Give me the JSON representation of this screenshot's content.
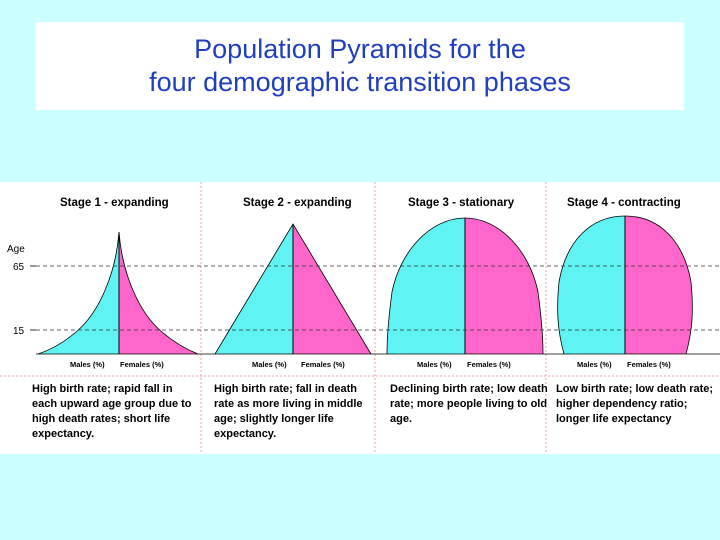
{
  "title": {
    "line1": "Population Pyramids for the",
    "line2": "four demographic transition phases"
  },
  "axis": {
    "age_label": "Age",
    "tick_65": "65",
    "tick_15": "15"
  },
  "colors": {
    "males": "#5ff3f3",
    "females": "#ff66cc",
    "title_text": "#1f3fbf",
    "background": "#ccffff"
  },
  "stages": [
    {
      "title": "Stage 1 - expanding",
      "males_label": "Males (%)",
      "females_label": "Females (%)",
      "description": "High birth rate; rapid fall in each upward age group due to high death rates; short life expectancy."
    },
    {
      "title": "Stage 2 - expanding",
      "males_label": "Males (%)",
      "females_label": "Females (%)",
      "description": "High birth rate; fall in death rate as more living in middle age; slightly longer life expectancy."
    },
    {
      "title": "Stage 3 - stationary",
      "males_label": "Males (%)",
      "females_label": "Females (%)",
      "description": "Declining birth rate; low death rate; more people living to old age."
    },
    {
      "title": "Stage 4 - contracting",
      "males_label": "Males (%)",
      "females_label": "Females (%)",
      "description": "Low birth rate; low death rate; higher dependency ratio; longer life expectancy"
    }
  ]
}
